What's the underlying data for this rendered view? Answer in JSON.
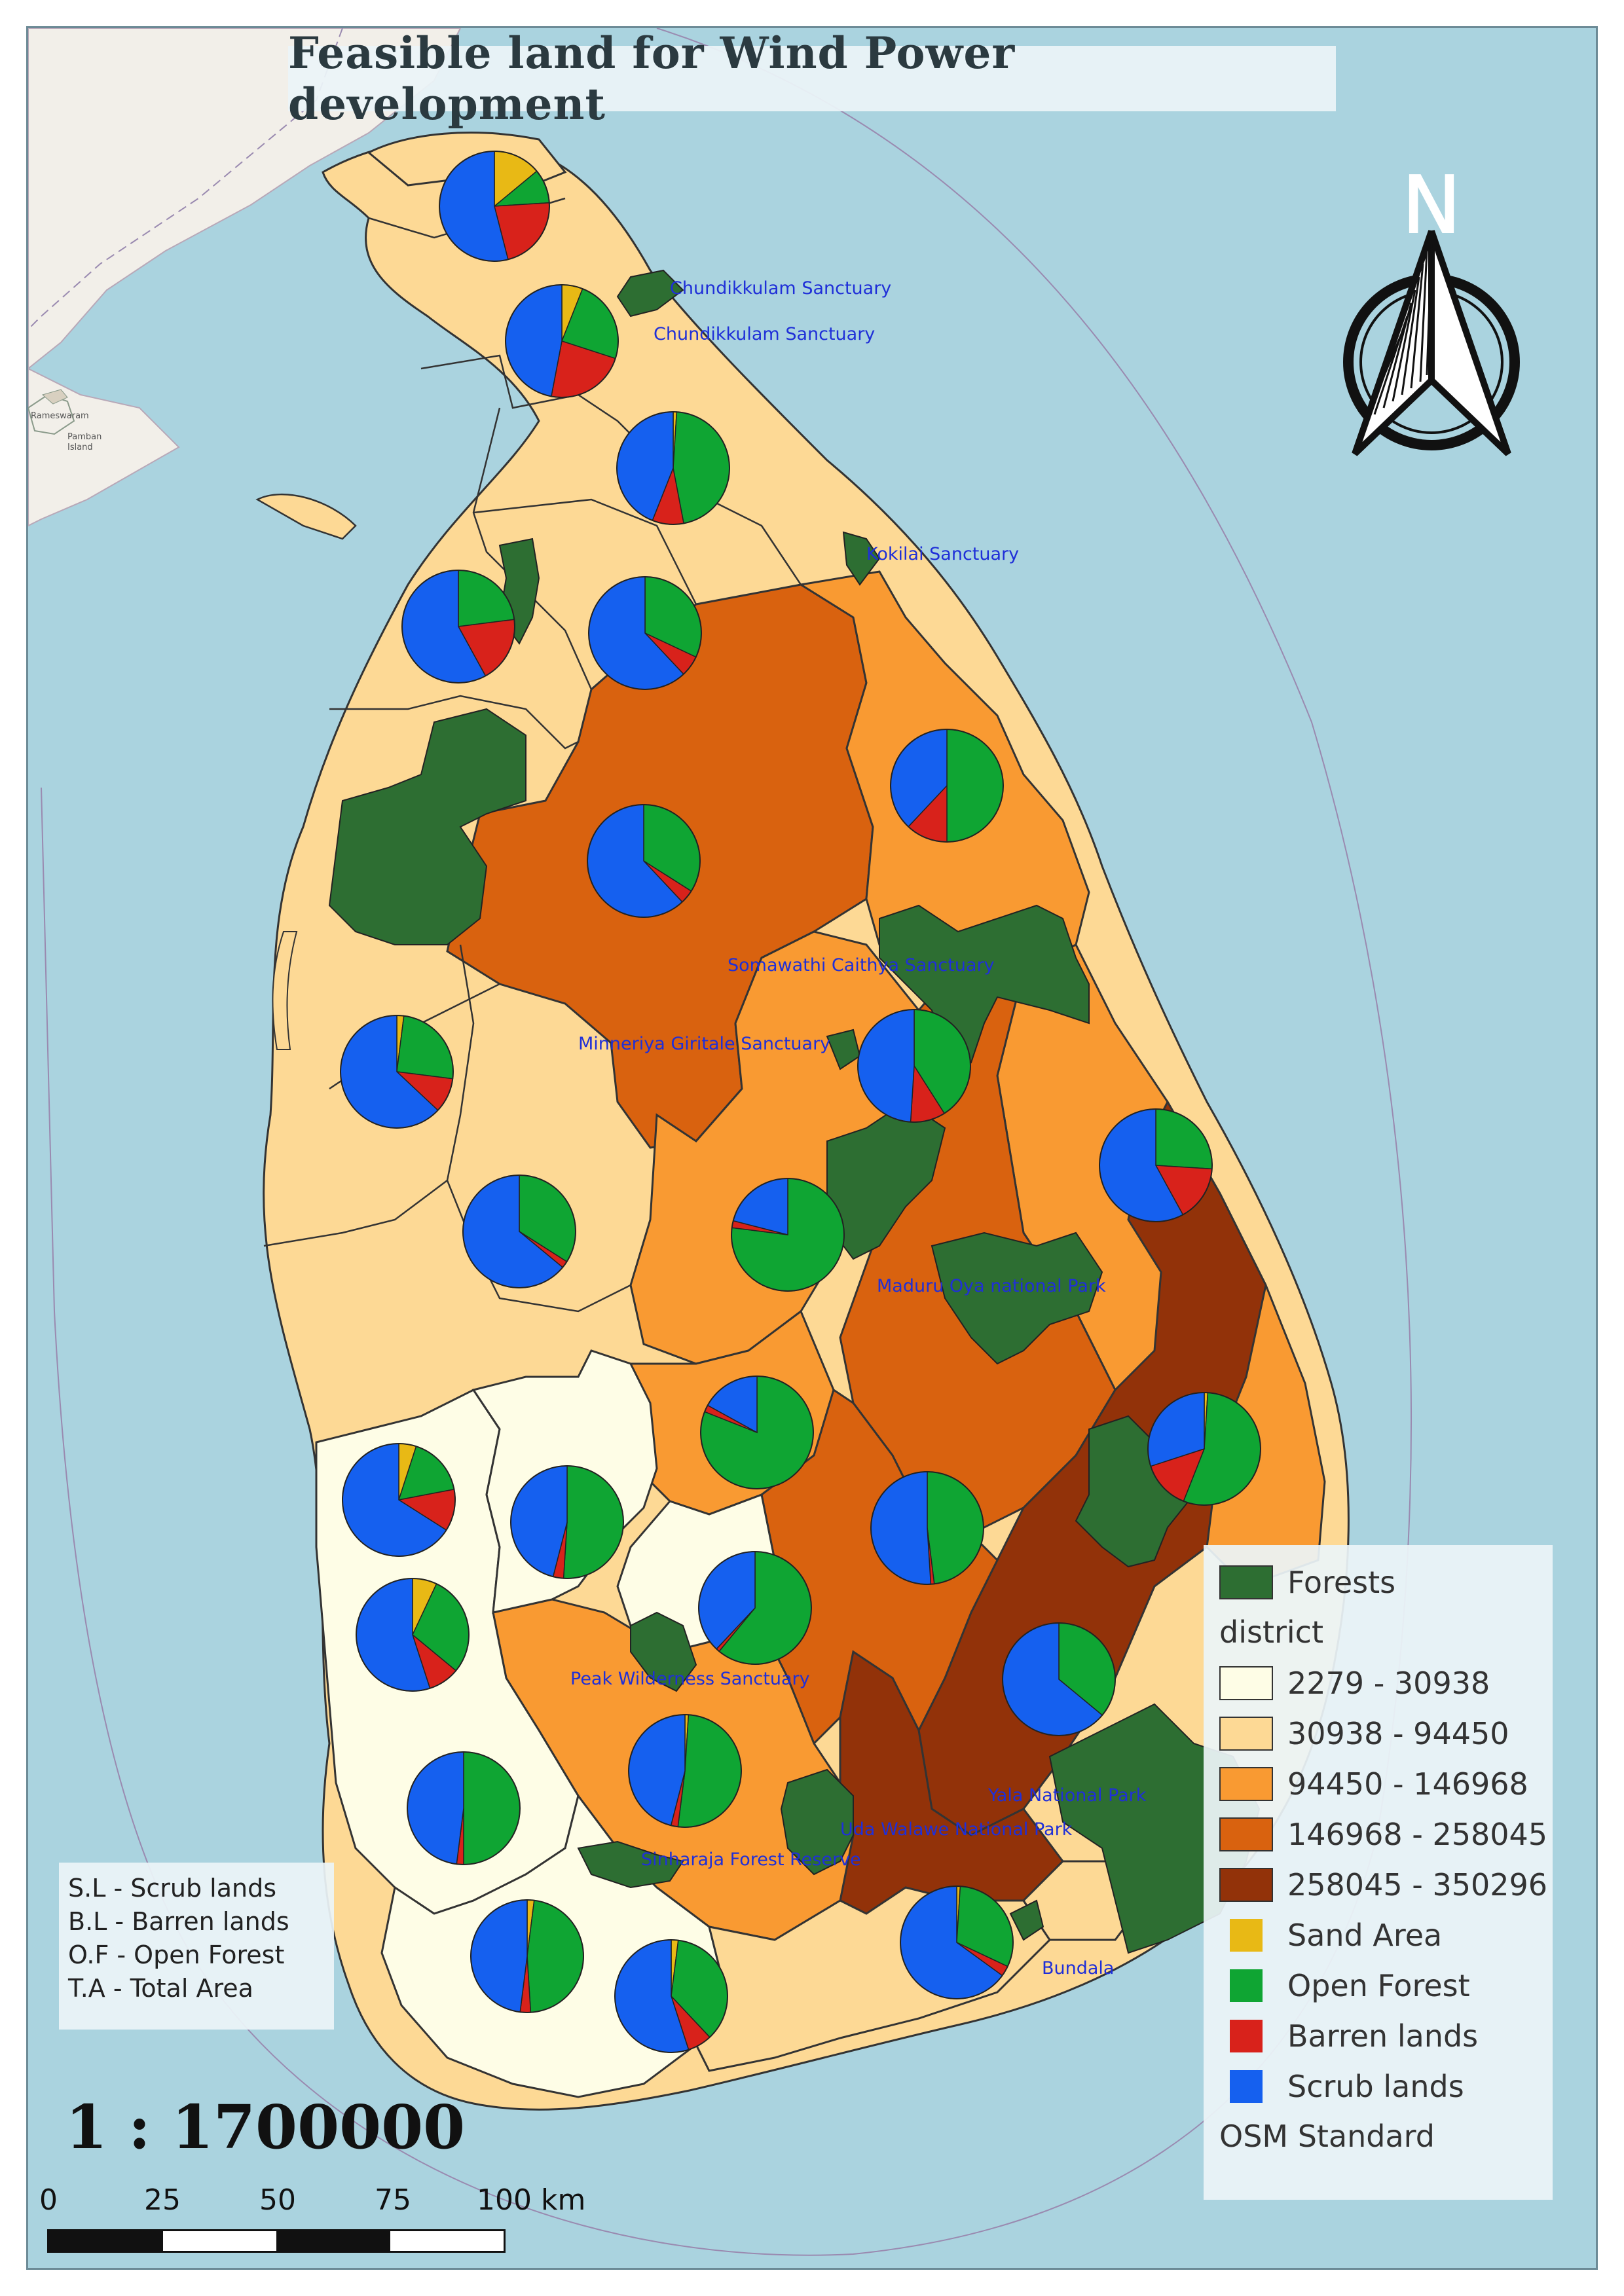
{
  "title": "Feasible land for Wind Power development",
  "colors": {
    "sea": "#aad3df",
    "land_outside": "#f2efe9",
    "forest": "#2d6e32",
    "class_1": "#fefde6",
    "class_2": "#fdd995",
    "class_3": "#f99a32",
    "class_4": "#d9620f",
    "class_5": "#923209",
    "sand": "#e8b915",
    "open_forest": "#0fa533",
    "barren": "#d8221b",
    "scrub": "#1560ef"
  },
  "north_arrow": {
    "label": "N"
  },
  "place_labels": [
    "Chundikkulam Sanctuary",
    "Chundikkulam Sanctuary",
    "Kokilai Sanctuary",
    "Somawathi Caithya Sanctuary",
    "Minneriya Giritale Sanctuary",
    "Maduru Oya national Park",
    "Peak Wilderness Sanctuary",
    "Yala National Park",
    "Uda Walawe National Park",
    "Sinharaja Forest Reserve",
    "Bundala"
  ],
  "background_labels": [
    "Rameswaram",
    "Pamban",
    "Island"
  ],
  "abbreviations": [
    "S.L - Scrub lands",
    "B.L - Barren lands",
    "O.F - Open Forest",
    "T.A - Total Area"
  ],
  "legend": {
    "forest_label": "Forests",
    "district_heading": "district",
    "classes": [
      {
        "label": "2279 - 30938",
        "color": "#fefde6"
      },
      {
        "label": "30938 - 94450",
        "color": "#fdd995"
      },
      {
        "label": "94450 - 146968",
        "color": "#f99a32"
      },
      {
        "label": "146968 - 258045",
        "color": "#d9620f"
      },
      {
        "label": "258045 - 350296",
        "color": "#923209"
      }
    ],
    "land_types": [
      {
        "label": "Sand Area",
        "color": "#e8b915"
      },
      {
        "label": "Open Forest",
        "color": "#0fa533"
      },
      {
        "label": "Barren lands",
        "color": "#d8221b"
      },
      {
        "label": "Scrub lands",
        "color": "#1560ef"
      }
    ],
    "basemap": "OSM Standard"
  },
  "scale": {
    "ratio": "1 : 1700000",
    "ticks": [
      "0",
      "25",
      "50",
      "75",
      "100 km"
    ]
  },
  "pie_charts": [
    {
      "sand": 0.14,
      "open_forest": 0.1,
      "barren": 0.22,
      "scrub": 0.54
    },
    {
      "sand": 0.06,
      "open_forest": 0.24,
      "barren": 0.23,
      "scrub": 0.47
    },
    {
      "sand": 0.01,
      "open_forest": 0.46,
      "barren": 0.09,
      "scrub": 0.44
    },
    {
      "sand": 0.0,
      "open_forest": 0.23,
      "barren": 0.19,
      "scrub": 0.58
    },
    {
      "sand": 0.0,
      "open_forest": 0.32,
      "barren": 0.06,
      "scrub": 0.62
    },
    {
      "sand": 0.0,
      "open_forest": 0.5,
      "barren": 0.12,
      "scrub": 0.38
    },
    {
      "sand": 0.0,
      "open_forest": 0.34,
      "barren": 0.04,
      "scrub": 0.62
    },
    {
      "sand": 0.02,
      "open_forest": 0.25,
      "barren": 0.1,
      "scrub": 0.63
    },
    {
      "sand": 0.0,
      "open_forest": 0.41,
      "barren": 0.1,
      "scrub": 0.49
    },
    {
      "sand": 0.0,
      "open_forest": 0.26,
      "barren": 0.16,
      "scrub": 0.58
    },
    {
      "sand": 0.0,
      "open_forest": 0.34,
      "barren": 0.02,
      "scrub": 0.64
    },
    {
      "sand": 0.0,
      "open_forest": 0.77,
      "barren": 0.02,
      "scrub": 0.21
    },
    {
      "sand": 0.0,
      "open_forest": 0.81,
      "barren": 0.02,
      "scrub": 0.17
    },
    {
      "sand": 0.01,
      "open_forest": 0.55,
      "barren": 0.14,
      "scrub": 0.3
    },
    {
      "sand": 0.05,
      "open_forest": 0.17,
      "barren": 0.12,
      "scrub": 0.66
    },
    {
      "sand": 0.0,
      "open_forest": 0.51,
      "barren": 0.03,
      "scrub": 0.46
    },
    {
      "sand": 0.0,
      "open_forest": 0.48,
      "barren": 0.01,
      "scrub": 0.51
    },
    {
      "sand": 0.0,
      "open_forest": 0.61,
      "barren": 0.01,
      "scrub": 0.38
    },
    {
      "sand": 0.07,
      "open_forest": 0.29,
      "barren": 0.09,
      "scrub": 0.55
    },
    {
      "sand": 0.0,
      "open_forest": 0.36,
      "barren": 0.0,
      "scrub": 0.64
    },
    {
      "sand": 0.01,
      "open_forest": 0.51,
      "barren": 0.02,
      "scrub": 0.46
    },
    {
      "sand": 0.0,
      "open_forest": 0.5,
      "barren": 0.02,
      "scrub": 0.48
    },
    {
      "sand": 0.02,
      "open_forest": 0.47,
      "barren": 0.03,
      "scrub": 0.48
    },
    {
      "sand": 0.02,
      "open_forest": 0.36,
      "barren": 0.07,
      "scrub": 0.55
    },
    {
      "sand": 0.01,
      "open_forest": 0.31,
      "barren": 0.03,
      "scrub": 0.65
    }
  ]
}
